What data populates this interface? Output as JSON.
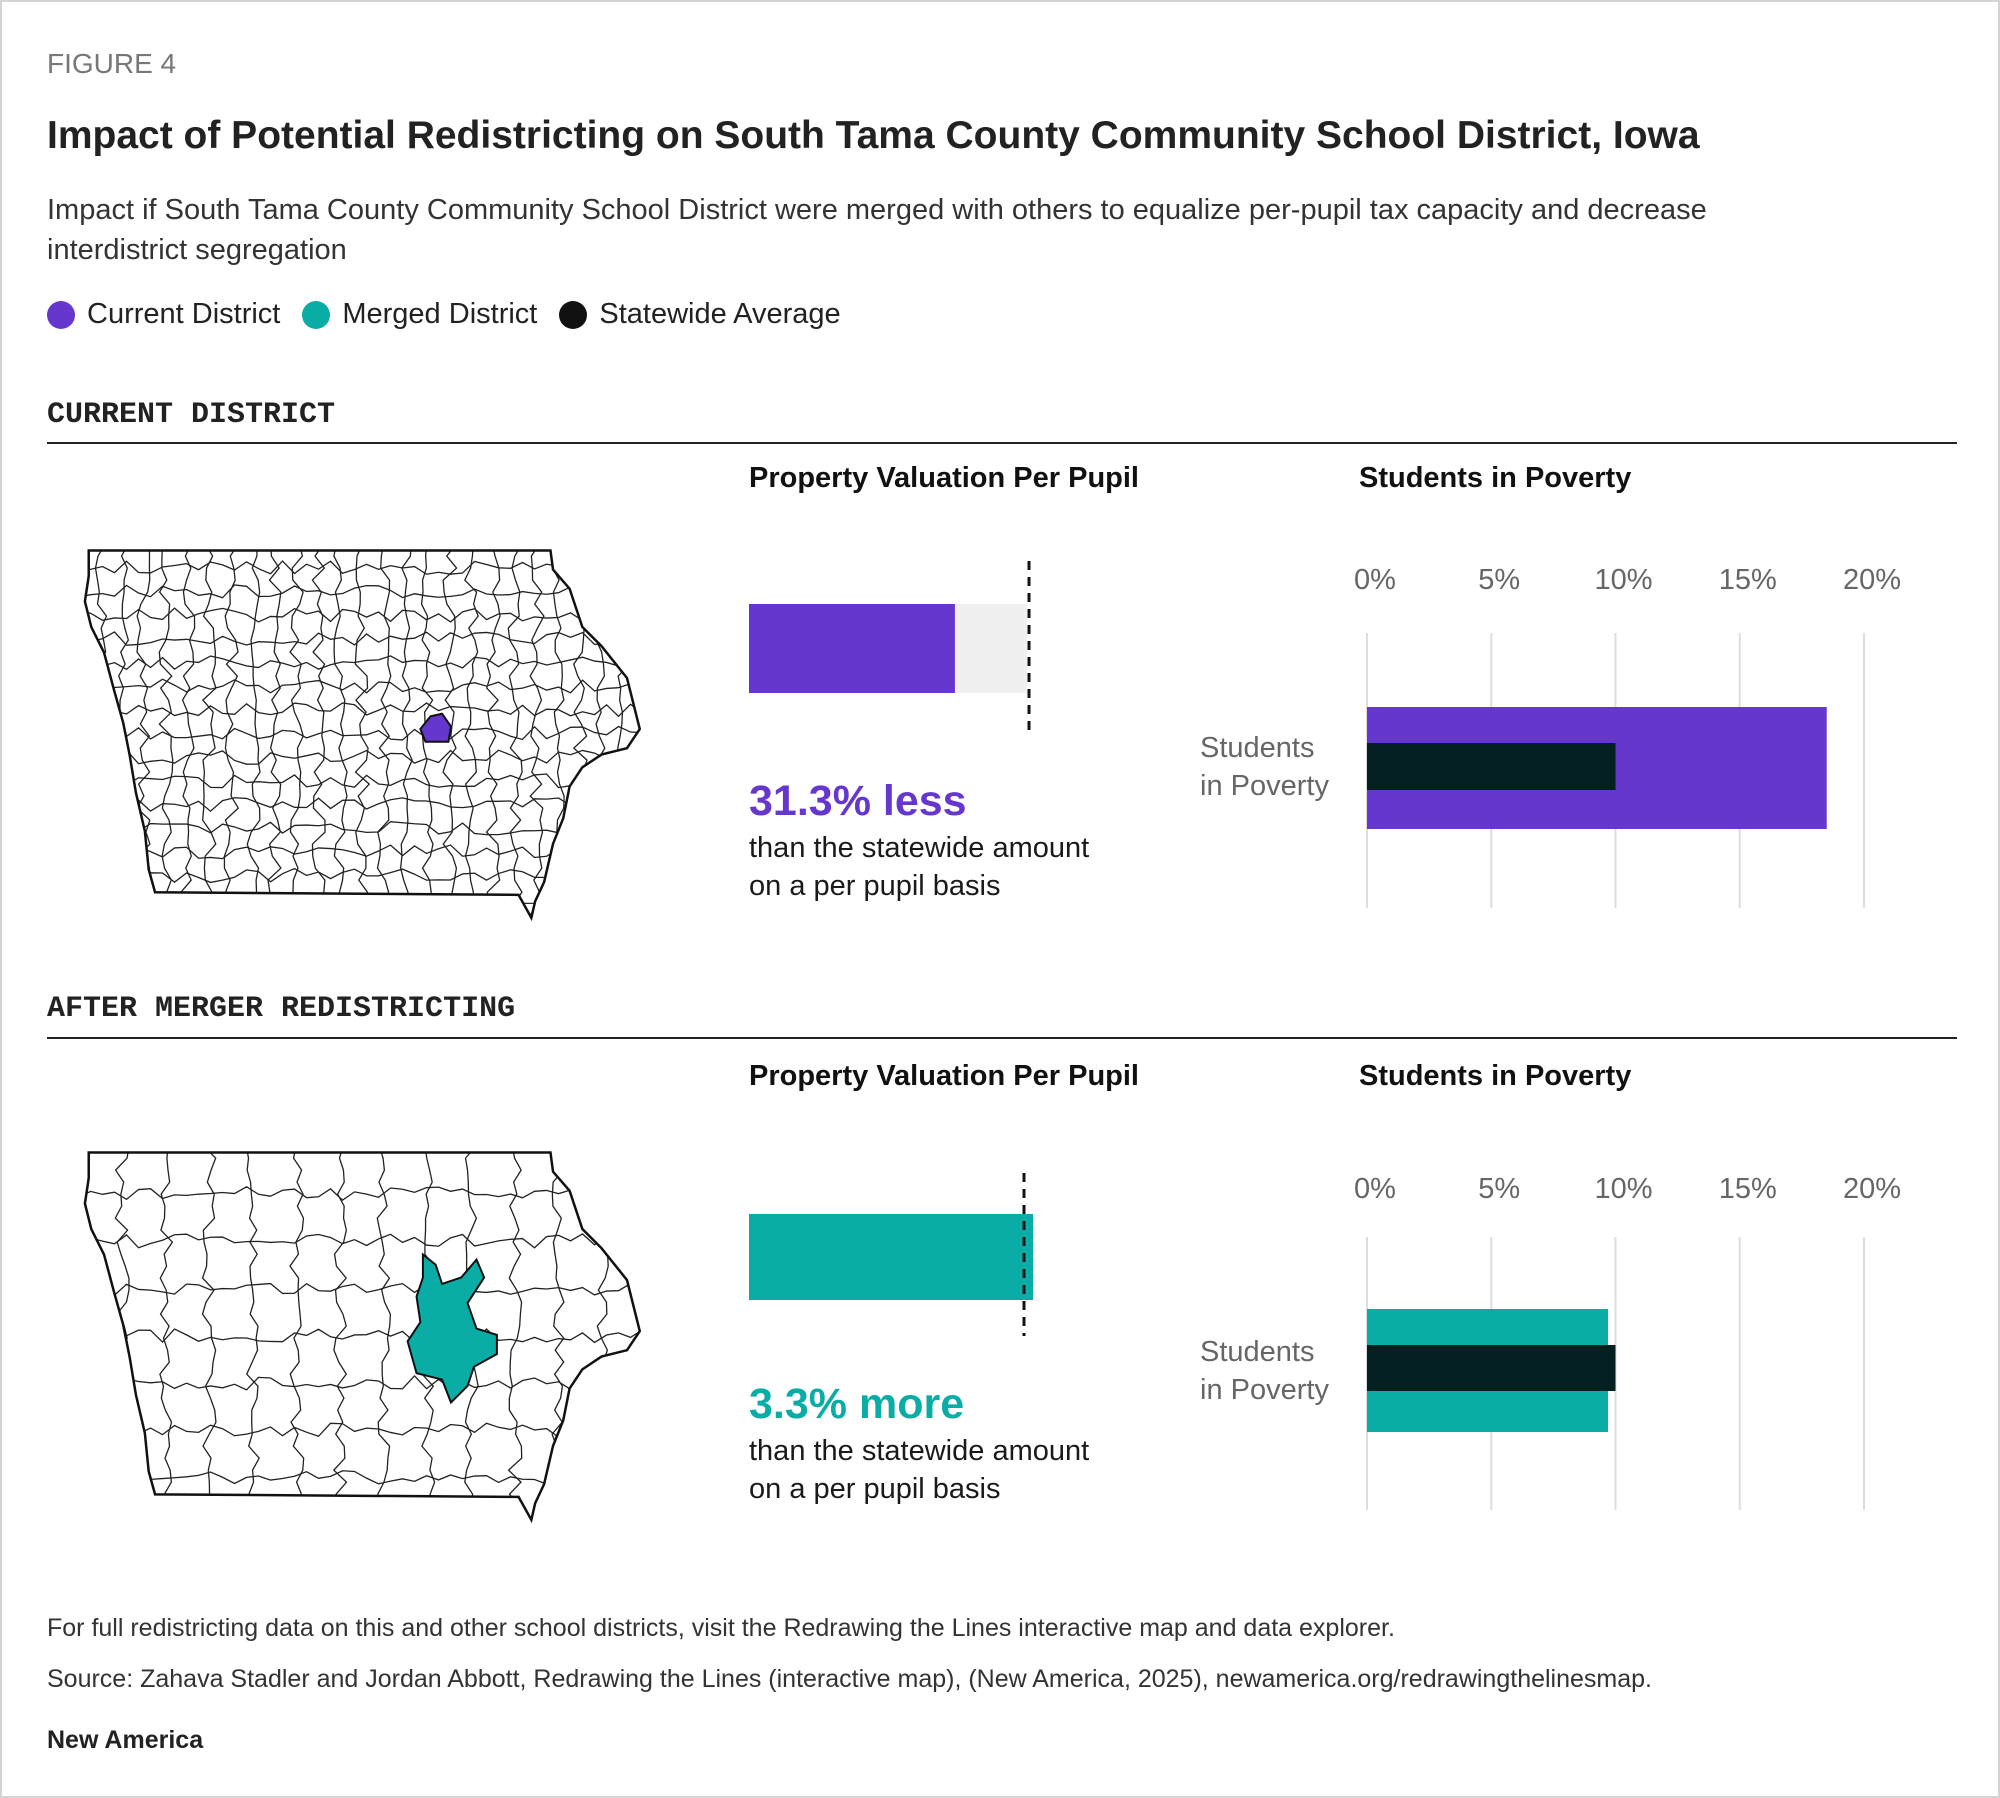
{
  "figure_label": "FIGURE 4",
  "title": "Impact of Potential Redistricting on South Tama County Community School District, Iowa",
  "subtitle": "Impact if South Tama County Community School District were merged with others to equalize per-pupil tax capacity and decrease interdistrict segregation",
  "legend": [
    {
      "label": "Current District",
      "color": "#6637cf"
    },
    {
      "label": "Merged District",
      "color": "#0aaca6"
    },
    {
      "label": "Statewide Average",
      "color": "#111111"
    }
  ],
  "colors": {
    "current": "#6637cf",
    "merged": "#0aaca6",
    "statewide": "#031f20",
    "baseline_bg": "#f0f0f0",
    "grid": "#dddddd"
  },
  "chart_data": [
    {
      "section": "CURRENT DISTRICT",
      "map_highlight": "South Tama County Community School District",
      "property": {
        "title": "Property Valuation Per Pupil",
        "type": "bar",
        "headline": "31.3% less",
        "difference_pct": -31.3,
        "line1": "than the statewide amount",
        "line2": "on a per pupil basis"
      },
      "poverty": {
        "title": "Students in Poverty",
        "type": "bar",
        "category_line1": "Students",
        "category_line2": "in Poverty",
        "ticks": [
          "0%",
          "5%",
          "10%",
          "15%",
          "20%"
        ],
        "xlim": [
          0,
          20
        ],
        "district_value": 18.5,
        "statewide_value": 10.0
      }
    },
    {
      "section": "AFTER MERGER REDISTRICTING",
      "map_highlight": "Merged District",
      "property": {
        "title": "Property Valuation Per Pupil",
        "type": "bar",
        "headline": "3.3% more",
        "difference_pct": 3.3,
        "line1": "than the statewide amount",
        "line2": "on a per pupil basis"
      },
      "poverty": {
        "title": "Students in Poverty",
        "type": "bar",
        "category_line1": "Students",
        "category_line2": "in Poverty",
        "ticks": [
          "0%",
          "5%",
          "10%",
          "15%",
          "20%"
        ],
        "xlim": [
          0,
          20
        ],
        "district_value": 9.7,
        "statewide_value": 10.0
      }
    }
  ],
  "footer": {
    "note": "For full redistricting data on this and other school districts, visit the Redrawing the Lines interactive map and data explorer.",
    "source": "Source: Zahava Stadler and Jordan Abbott, Redrawing the Lines (interactive map), (New America, 2025), newamerica.org/redrawingthelinesmap.",
    "brand": "New America"
  }
}
